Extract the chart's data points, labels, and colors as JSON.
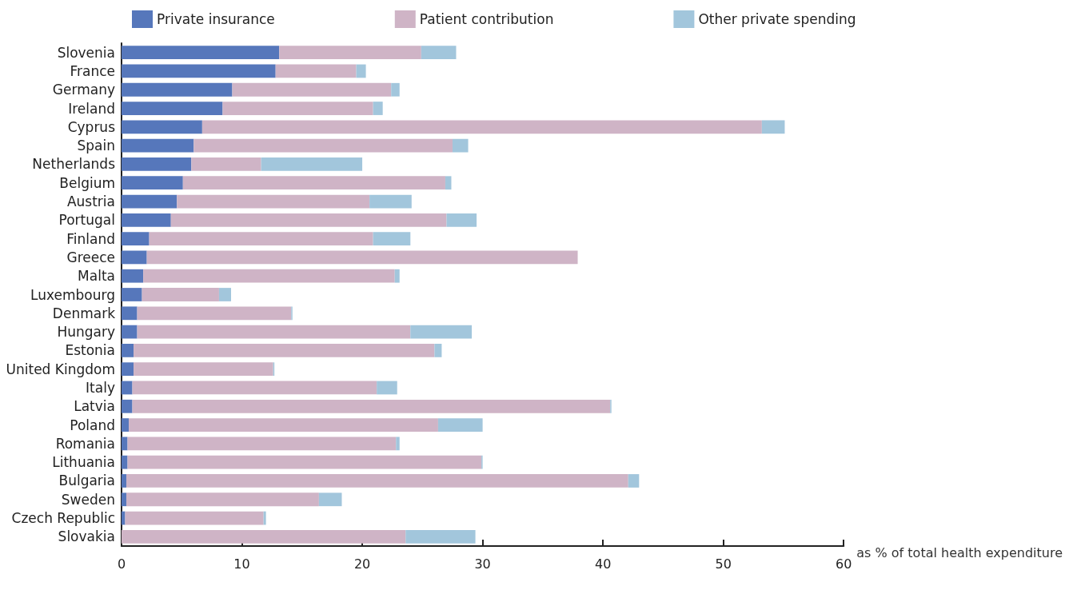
{
  "chart_data": {
    "type": "bar",
    "orientation": "horizontal",
    "stacked": true,
    "xlabel": "as % of total health expenditure",
    "legend": "top",
    "grid": false,
    "categories": [
      "Slovenia",
      "France",
      "Germany",
      "Ireland",
      "Cyprus",
      "Spain",
      "Netherlands",
      "Belgium",
      "Austria",
      "Portugal",
      "Finland",
      "Greece",
      "Malta",
      "Luxembourg",
      "Denmark",
      "Hungary",
      "Estonia",
      "United Kingdom",
      "Italy",
      "Latvia",
      "Poland",
      "Romania",
      "Lithuania",
      "Bulgaria",
      "Sweden",
      "Czech Republic",
      "Slovakia"
    ],
    "xlim": [
      0,
      60
    ],
    "xticks": [
      0,
      10,
      20,
      30,
      40,
      50,
      60
    ],
    "series": [
      {
        "name": "Private insurance",
        "color": "#5677bb",
        "values": [
          13.1,
          12.8,
          9.2,
          8.4,
          6.7,
          6.0,
          5.8,
          5.1,
          4.6,
          4.1,
          2.3,
          2.1,
          1.8,
          1.7,
          1.3,
          1.3,
          1.0,
          1.0,
          0.9,
          0.9,
          0.6,
          0.5,
          0.5,
          0.4,
          0.4,
          0.3,
          0
        ]
      },
      {
        "name": "Patient contribution",
        "color": "#cfb4c6",
        "values": [
          11.8,
          6.7,
          13.2,
          12.5,
          46.5,
          21.5,
          5.8,
          21.8,
          16.0,
          22.9,
          18.6,
          35.8,
          20.9,
          6.4,
          12.8,
          22.7,
          25.0,
          11.6,
          20.3,
          39.7,
          25.7,
          22.3,
          29.4,
          41.7,
          16.0,
          11.5,
          23.6
        ]
      },
      {
        "name": "Other private spending",
        "color": "#a2c6dc",
        "values": [
          2.9,
          0.8,
          0.7,
          0.8,
          1.9,
          1.3,
          8.4,
          0.5,
          3.5,
          2.5,
          3.1,
          0,
          0.4,
          1.0,
          0.1,
          5.1,
          0.6,
          0.1,
          1.7,
          0.1,
          3.7,
          0.3,
          0.1,
          0.9,
          1.9,
          0.2,
          5.8
        ]
      }
    ]
  }
}
